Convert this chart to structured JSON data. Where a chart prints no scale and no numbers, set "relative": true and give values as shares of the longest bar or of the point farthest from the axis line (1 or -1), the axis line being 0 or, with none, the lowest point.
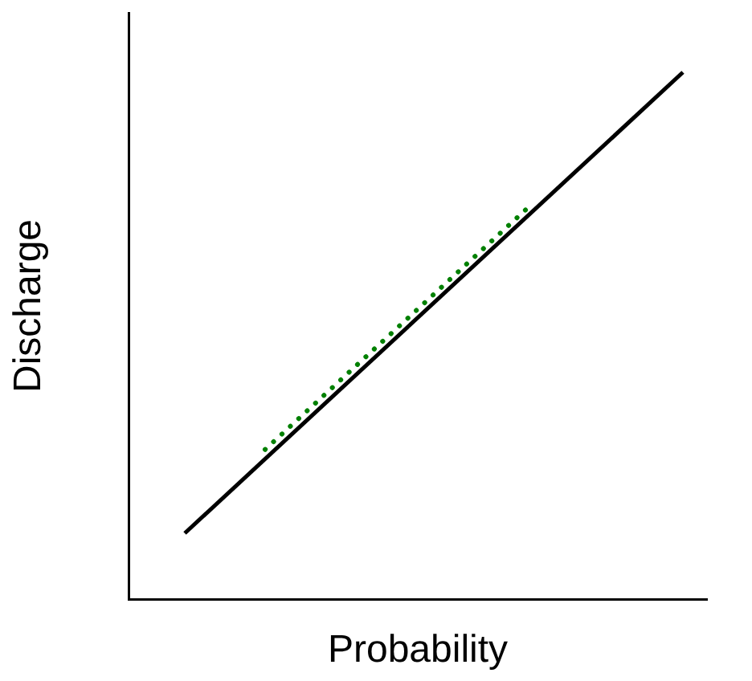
{
  "chart_data": {
    "type": "line",
    "xlabel": "Probability",
    "ylabel": "Discharge",
    "relative": true,
    "grid": false,
    "legend": false,
    "marker": "none",
    "categories": [
      null,
      null,
      null,
      null,
      null,
      null,
      null,
      null,
      null,
      null,
      null,
      null,
      null,
      null,
      null,
      null,
      null,
      null,
      null,
      null,
      null,
      null,
      null,
      null,
      null,
      null,
      null,
      null,
      null,
      null,
      null,
      null,
      null,
      null,
      null,
      null,
      null,
      null,
      null,
      null,
      null,
      null,
      null,
      null,
      null,
      null,
      null,
      null,
      null,
      null,
      null,
      null,
      null,
      null,
      null,
      null,
      null,
      null,
      null,
      null,
      null,
      null,
      null,
      null,
      null,
      null,
      null,
      null,
      null,
      null,
      null,
      null,
      null
    ],
    "series": [
      {
        "color": "#000000",
        "line_style": "solid",
        "values": [
          null,
          null,
          null,
          null,
          null,
          null,
          null,
          0.125,
          null,
          null,
          null,
          null,
          null,
          null,
          null,
          null,
          null,
          null,
          null,
          null,
          null,
          null,
          null,
          null,
          null,
          null,
          null,
          null,
          null,
          null,
          null,
          null,
          null,
          null,
          null,
          null,
          null,
          null,
          null,
          null,
          null,
          null,
          null,
          null,
          null,
          null,
          null,
          null,
          null,
          null,
          null,
          null,
          null,
          null,
          null,
          null,
          null,
          null,
          null,
          null,
          null,
          null,
          null,
          null,
          null,
          null,
          null,
          null,
          null,
          1,
          null,
          null,
          null
        ]
      },
      {
        "color": "#008000",
        "line_style": "dotted",
        "values": [
          null,
          null,
          null,
          null,
          null,
          null,
          null,
          null,
          null,
          null,
          null,
          null,
          null,
          null,
          null,
          null,
          null,
          0.284,
          null,
          null,
          null,
          null,
          null,
          null,
          null,
          null,
          null,
          null,
          null,
          null,
          null,
          null,
          null,
          null,
          null,
          null,
          null,
          null,
          null,
          null,
          null,
          null,
          null,
          null,
          null,
          null,
          null,
          null,
          null,
          null,
          0.747,
          null,
          null,
          null,
          null,
          null,
          null,
          null,
          null,
          null,
          null,
          null,
          null,
          null,
          null,
          null,
          null,
          null,
          null,
          null,
          null,
          null,
          null
        ]
      }
    ]
  }
}
